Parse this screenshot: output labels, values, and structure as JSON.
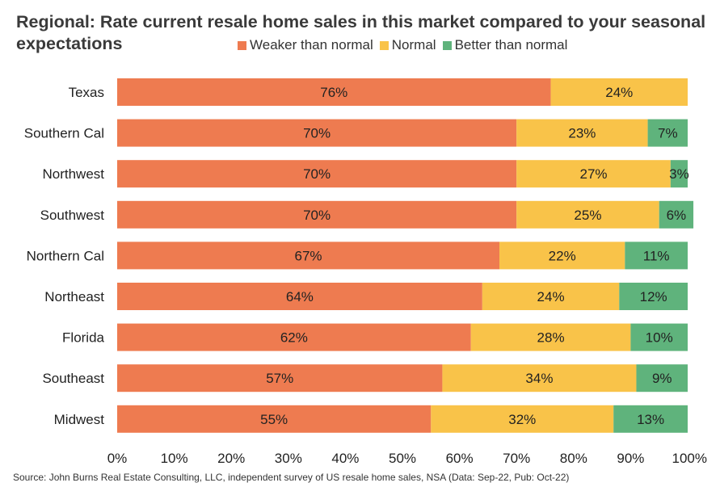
{
  "chart_data": {
    "type": "bar",
    "orientation": "horizontal",
    "stacked": true,
    "title": "Regional: Rate current resale home sales in this market compared to your seasonal expectations",
    "categories": [
      "Texas",
      "Southern Cal",
      "Northwest",
      "Southwest",
      "Northern Cal",
      "Northeast",
      "Florida",
      "Southeast",
      "Midwest"
    ],
    "series": [
      {
        "name": "Weaker than normal",
        "color": "#EE7B50",
        "values": [
          76,
          70,
          70,
          70,
          67,
          64,
          62,
          57,
          55
        ],
        "labels": [
          "76%",
          "70%",
          "70%",
          "70%",
          "67%",
          "64%",
          "62%",
          "57%",
          "55%"
        ]
      },
      {
        "name": "Normal",
        "color": "#F9C349",
        "values": [
          24,
          23,
          27,
          25,
          22,
          24,
          28,
          34,
          32
        ],
        "labels": [
          "24%",
          "23%",
          "27%",
          "25%",
          "22%",
          "24%",
          "28%",
          "34%",
          "32%"
        ]
      },
      {
        "name": "Better than normal",
        "color": "#5FB37C",
        "values": [
          0,
          7,
          3,
          6,
          11,
          12,
          10,
          9,
          13
        ],
        "labels": [
          "",
          "7%",
          "3%",
          "6%",
          "11%",
          "12%",
          "10%",
          "9%",
          "13%"
        ]
      }
    ],
    "xlim": [
      0,
      100
    ],
    "xticks": [
      "0%",
      "10%",
      "20%",
      "30%",
      "40%",
      "50%",
      "60%",
      "70%",
      "80%",
      "90%",
      "100%"
    ],
    "grid": false,
    "legend_position": "top"
  },
  "source": "Source: John Burns Real Estate Consulting, LLC, independent survey of US resale home sales, NSA (Data: Sep-22, Pub: Oct-22)"
}
